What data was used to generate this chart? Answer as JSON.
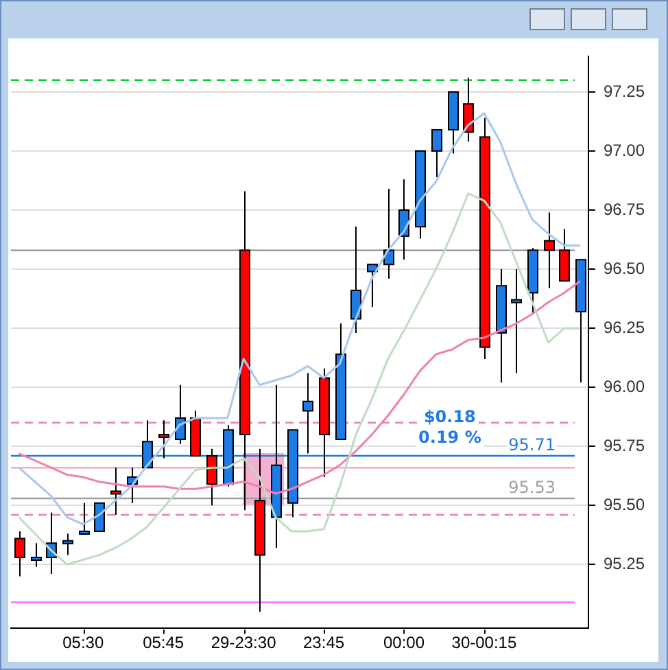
{
  "chart_data": {
    "type": "candlestick",
    "categories": [
      null,
      null,
      null,
      null,
      "05:30",
      null,
      null,
      null,
      null,
      "05:45",
      null,
      null,
      null,
      null,
      "29-23:30",
      null,
      null,
      null,
      null,
      "23:45",
      null,
      null,
      null,
      null,
      "00:00",
      null,
      null,
      null,
      null,
      "30-00:15",
      null,
      null,
      null,
      null,
      null,
      null
    ],
    "ohlc": [
      [
        95.36,
        95.39,
        95.2,
        95.28
      ],
      [
        95.27,
        95.34,
        95.24,
        95.28
      ],
      [
        95.28,
        95.47,
        95.21,
        95.34
      ],
      [
        95.34,
        95.38,
        95.29,
        95.35
      ],
      [
        95.38,
        95.51,
        95.38,
        95.39
      ],
      [
        95.39,
        95.51,
        95.39,
        95.51
      ],
      [
        95.56,
        95.66,
        95.46,
        95.55
      ],
      [
        95.59,
        95.66,
        95.51,
        95.62
      ],
      [
        95.66,
        95.86,
        95.66,
        95.77
      ],
      [
        95.8,
        95.86,
        95.7,
        95.79
      ],
      [
        95.78,
        96.01,
        95.76,
        95.87
      ],
      [
        95.87,
        95.9,
        95.71,
        95.71
      ],
      [
        95.71,
        95.74,
        95.5,
        95.59
      ],
      [
        95.59,
        95.84,
        95.58,
        95.82
      ],
      [
        96.58,
        96.83,
        95.48,
        95.8
      ],
      [
        95.52,
        95.74,
        95.05,
        95.29
      ],
      [
        95.45,
        96.01,
        95.32,
        95.67
      ],
      [
        95.51,
        95.82,
        95.45,
        95.82
      ],
      [
        95.9,
        96.06,
        95.72,
        95.94
      ],
      [
        96.04,
        96.08,
        95.62,
        95.8
      ],
      [
        95.78,
        96.27,
        95.78,
        96.14
      ],
      [
        96.29,
        96.68,
        96.23,
        96.41
      ],
      [
        96.49,
        96.52,
        96.34,
        96.52
      ],
      [
        96.52,
        96.84,
        96.46,
        96.58
      ],
      [
        96.64,
        96.88,
        96.54,
        96.75
      ],
      [
        96.68,
        97.0,
        96.63,
        97.0
      ],
      [
        97.0,
        97.09,
        96.89,
        97.09
      ],
      [
        97.09,
        97.25,
        96.99,
        97.25
      ],
      [
        97.2,
        97.31,
        97.04,
        97.08
      ],
      [
        97.06,
        97.14,
        96.12,
        96.17
      ],
      [
        96.23,
        96.5,
        96.02,
        96.43
      ],
      [
        96.36,
        96.5,
        96.06,
        96.37
      ],
      [
        96.4,
        96.59,
        96.31,
        96.58
      ],
      [
        96.62,
        96.74,
        96.42,
        96.58
      ],
      [
        96.58,
        96.67,
        96.45,
        96.45
      ],
      [
        96.32,
        96.54,
        96.02,
        96.54
      ]
    ],
    "colors": [
      "#ff0000",
      "#1e7be6",
      "#1e7be6",
      "#1e7be6",
      "#1e7be6",
      "#1e7be6",
      "#ff0000",
      "#1e7be6",
      "#1e7be6",
      "#ff0000",
      "#1e7be6",
      "#ff0000",
      "#ff0000",
      "#1e7be6",
      "#ff0000",
      "#ff0000",
      "#1e7be6",
      "#1e7be6",
      "#1e7be6",
      "#ff0000",
      "#1e7be6",
      "#1e7be6",
      "#1e7be6",
      "#1e7be6",
      "#1e7be6",
      "#1e7be6",
      "#1e7be6",
      "#1e7be6",
      "#ff0000",
      "#ff0000",
      "#1e7be6",
      "#1e7be6",
      "#1e7be6",
      "#ff0000",
      "#ff0000",
      "#1e7be6"
    ],
    "series": [
      {
        "type": "line",
        "color": "#a8c8f0",
        "values": [
          95.66,
          95.6,
          95.54,
          95.45,
          95.42,
          95.46,
          95.52,
          95.58,
          95.67,
          95.75,
          95.84,
          95.87,
          95.87,
          95.87,
          96.12,
          96.01,
          96.03,
          96.05,
          96.09,
          96.04,
          96.1,
          96.29,
          96.46,
          96.58,
          96.66,
          96.79,
          96.87,
          97.01,
          97.11,
          97.16,
          97.04,
          96.86,
          96.71,
          96.65,
          96.6,
          96.6
        ]
      },
      {
        "type": "line",
        "color": "#c0dcc0",
        "values": [
          95.45,
          95.38,
          95.31,
          95.25,
          95.27,
          95.29,
          95.32,
          95.36,
          95.41,
          95.49,
          95.57,
          95.65,
          95.66,
          95.66,
          95.7,
          95.62,
          95.45,
          95.39,
          95.39,
          95.4,
          95.58,
          95.8,
          95.95,
          96.12,
          96.24,
          96.37,
          96.5,
          96.65,
          96.82,
          96.79,
          96.7,
          96.53,
          96.36,
          96.19,
          96.25,
          96.25
        ]
      },
      {
        "type": "line",
        "color": "#f080b0",
        "values": [
          95.72,
          95.69,
          95.66,
          95.63,
          95.62,
          95.6,
          95.59,
          95.58,
          95.58,
          95.58,
          95.57,
          95.57,
          95.58,
          95.59,
          95.6,
          95.58,
          95.55,
          95.57,
          95.6,
          95.63,
          95.67,
          95.73,
          95.8,
          95.88,
          95.97,
          96.07,
          96.14,
          96.16,
          96.2,
          96.21,
          96.24,
          96.27,
          96.31,
          96.36,
          96.4,
          96.45
        ]
      }
    ],
    "ylim": [
      94.98,
      97.4
    ],
    "yticks": [
      {
        "value": 95.25,
        "label": "95.25"
      },
      {
        "value": 95.5,
        "label": "95.50"
      },
      {
        "value": 95.75,
        "label": "95.75"
      },
      {
        "value": 96,
        "label": "96.00"
      },
      {
        "value": 96.25,
        "label": "96.25"
      },
      {
        "value": 96.5,
        "label": "96.50"
      },
      {
        "value": 96.75,
        "label": "96.75"
      },
      {
        "value": 97,
        "label": "97.00"
      },
      {
        "value": 97.25,
        "label": "97.25"
      }
    ],
    "ref_lines": [
      {
        "axis": "y",
        "value": 97.3,
        "color": "#00cc33",
        "line_style": "dashed"
      },
      {
        "axis": "y",
        "value": 96.58,
        "color": "#909090"
      },
      {
        "axis": "y",
        "value": 95.85,
        "color": "#f080b0",
        "line_style": "dashed"
      },
      {
        "axis": "y",
        "value": 95.66,
        "color": "#f8a8d0"
      },
      {
        "axis": "y",
        "value": 95.46,
        "color": "#f080b0",
        "line_style": "dashed"
      },
      {
        "axis": "y",
        "value": 95.09,
        "color": "#ff66ff"
      },
      {
        "axis": "y",
        "value": 95.71,
        "color": "#1e7be6",
        "label": "95.71"
      },
      {
        "axis": "y",
        "value": 95.53,
        "color": "#a0a0a0",
        "label": "95.53"
      }
    ],
    "annotations": [
      "$0.18",
      "0.19 %"
    ],
    "grid": "y",
    "legend": false
  }
}
